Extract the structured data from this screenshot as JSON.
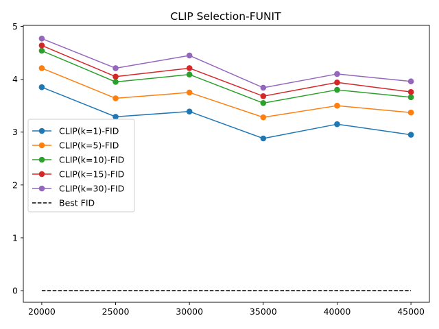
{
  "chart_data": {
    "type": "line",
    "title": "CLIP Selection-FUNIT",
    "xlabel": "",
    "ylabel": "",
    "x": [
      20000,
      25000,
      30000,
      35000,
      40000,
      45000
    ],
    "xticks": [
      "20000",
      "25000",
      "30000",
      "35000",
      "40000",
      "45000"
    ],
    "yticks": [
      "0",
      "1",
      "2",
      "3",
      "4",
      "5"
    ],
    "xlim": [
      18750,
      46250
    ],
    "ylim": [
      -0.22,
      5.02
    ],
    "grid": false,
    "legend_position": "center-left",
    "series": [
      {
        "name": "CLIP(k=1)-FID",
        "color": "#1f77b4",
        "style": "solid",
        "marker": "circle",
        "values": [
          3.85,
          3.29,
          3.39,
          2.88,
          3.15,
          2.95
        ]
      },
      {
        "name": "CLIP(k=5)-FID",
        "color": "#ff7f0e",
        "style": "solid",
        "marker": "circle",
        "values": [
          4.21,
          3.64,
          3.75,
          3.28,
          3.5,
          3.37
        ]
      },
      {
        "name": "CLIP(k=10)-FID",
        "color": "#2ca02c",
        "style": "solid",
        "marker": "circle",
        "values": [
          4.54,
          3.95,
          4.09,
          3.55,
          3.8,
          3.66
        ]
      },
      {
        "name": "CLIP(k=15)-FID",
        "color": "#d62728",
        "style": "solid",
        "marker": "circle",
        "values": [
          4.64,
          4.05,
          4.21,
          3.68,
          3.94,
          3.76
        ]
      },
      {
        "name": "CLIP(k=30)-FID",
        "color": "#9467bd",
        "style": "solid",
        "marker": "circle",
        "values": [
          4.77,
          4.21,
          4.45,
          3.84,
          4.1,
          3.96
        ]
      },
      {
        "name": "Best FID",
        "color": "#000000",
        "style": "dashed",
        "marker": "none",
        "values": [
          0,
          0,
          0,
          0,
          0,
          0
        ]
      }
    ]
  }
}
